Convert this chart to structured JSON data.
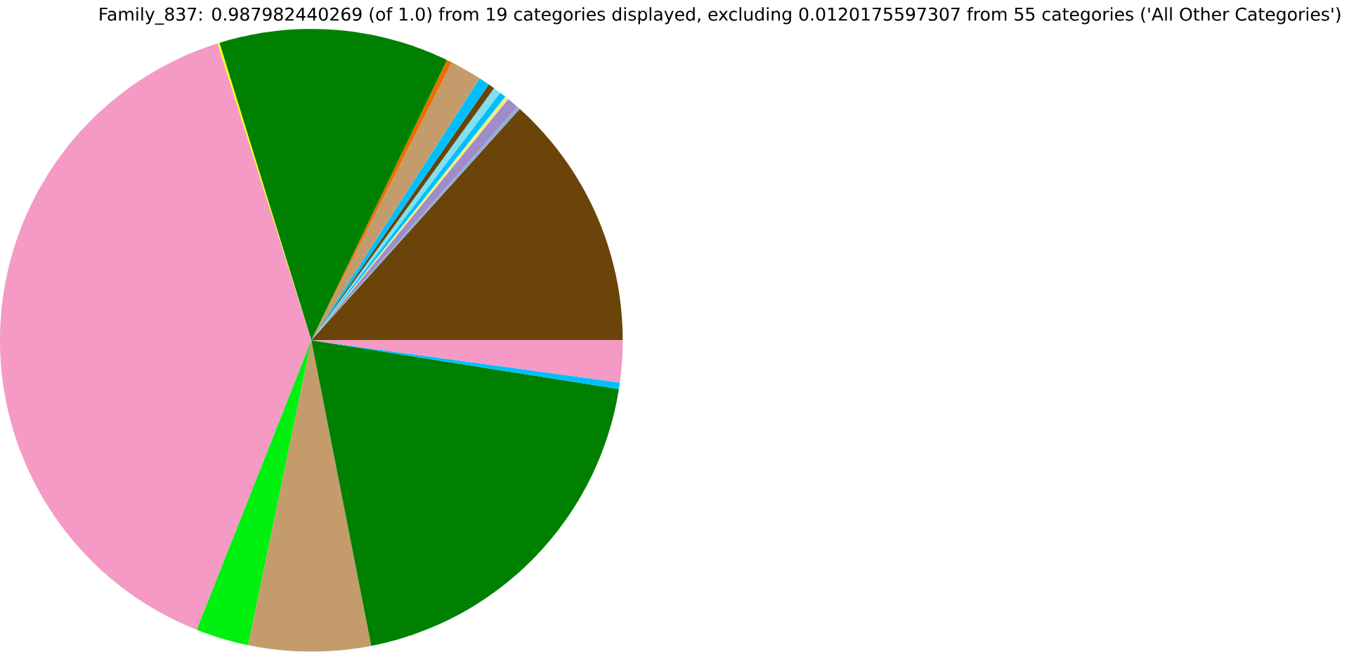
{
  "chart_data": {
    "type": "pie",
    "title": "Family_837: 0.987982440269 (of 1.0) from 19 categories displayed, excluding 0.0120175597307 from 55 categories ('All Other Categories')",
    "categories": [
      null,
      null,
      null,
      null,
      null,
      null,
      null,
      null,
      null,
      null,
      null,
      null,
      null,
      null,
      null,
      null,
      null,
      null
    ],
    "values": [
      13.33,
      0.17,
      0.61,
      0.19,
      0.33,
      0.39,
      0.33,
      0.56,
      1.64,
      0.28,
      11.94,
      0.11,
      39.12,
      2.75,
      6.33,
      19.42,
      0.33,
      2.17
    ],
    "colors": [
      "#6b4409",
      "#8fb0d8",
      "#a08cc8",
      "#f0f080",
      "#00bfff",
      "#80e0f0",
      "#6b4409",
      "#00bfff",
      "#c49c6c",
      "#e87000",
      "#008000",
      "#ffff00",
      "#f49ac4",
      "#00f010",
      "#c49c6c",
      "#008000",
      "#00bfff",
      "#f49ac4"
    ]
  }
}
